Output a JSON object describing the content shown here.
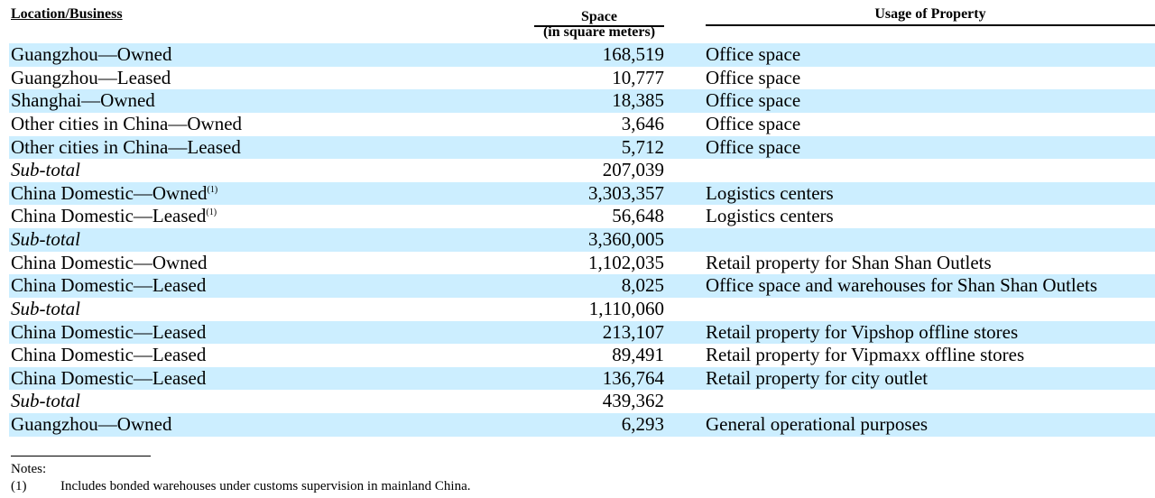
{
  "headers": {
    "location": "Location/Business",
    "space_line1": "Space",
    "space_line2": "(in square meters)",
    "usage": "Usage of Property"
  },
  "rows": [
    {
      "location": "Guangzhou—Owned",
      "space": "168,519",
      "usage": "Office space"
    },
    {
      "location": "Guangzhou—Leased",
      "space": "10,777",
      "usage": "Office space"
    },
    {
      "location": "Shanghai—Owned",
      "space": "18,385",
      "usage": "Office space"
    },
    {
      "location": "Other cities in China—Owned",
      "space": "3,646",
      "usage": "Office space"
    },
    {
      "location": "Other cities in China—Leased",
      "space": "5,712",
      "usage": "Office space"
    },
    {
      "location": "Sub-total",
      "space": "207,039",
      "usage": ""
    },
    {
      "location": "China Domestic—Owned",
      "footnote": "(1)",
      "space": "3,303,357",
      "usage": "Logistics centers"
    },
    {
      "location": "China Domestic—Leased",
      "footnote": "(1)",
      "space": "56,648",
      "usage": "Logistics centers"
    },
    {
      "location": "Sub-total",
      "space": "3,360,005",
      "usage": ""
    },
    {
      "location": "China Domestic—Owned",
      "space": "1,102,035",
      "usage": "Retail property for Shan Shan Outlets"
    },
    {
      "location": "China Domestic—Leased",
      "space": "8,025",
      "usage": "Office space and warehouses for Shan Shan Outlets"
    },
    {
      "location": "Sub-total",
      "space": "1,110,060",
      "usage": ""
    },
    {
      "location": "China Domestic—Leased",
      "space": "213,107",
      "usage": "Retail property for Vipshop offline stores"
    },
    {
      "location": "China Domestic—Leased",
      "space": "89,491",
      "usage": "Retail property for Vipmaxx offline stores"
    },
    {
      "location": "China Domestic—Leased",
      "space": "136,764",
      "usage": "Retail property for city outlet"
    },
    {
      "location": "Sub-total",
      "space": "439,362",
      "usage": ""
    },
    {
      "location": "Guangzhou—Owned",
      "space": "6,293",
      "usage": "General operational purposes"
    }
  ],
  "notes": {
    "title": "Notes:",
    "items": [
      {
        "number": "(1)",
        "text": "Includes bonded warehouses under customs supervision in mainland China."
      }
    ]
  },
  "colors": {
    "row_shade": "#cceeff",
    "text": "#000000"
  }
}
